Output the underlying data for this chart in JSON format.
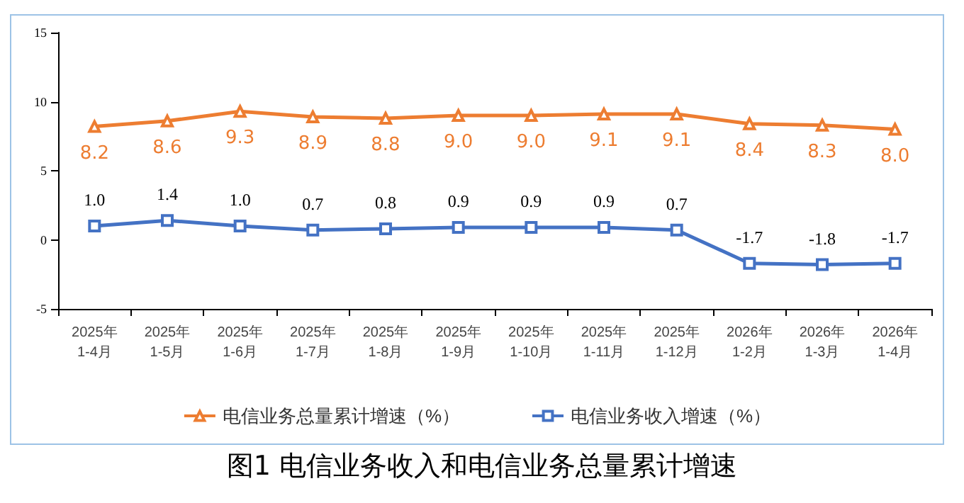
{
  "chart_data": {
    "type": "line",
    "title": "图1 电信业务收入和电信业务总量累计增速",
    "categories": [
      "2025年\n1-4月",
      "2025年\n1-5月",
      "2025年\n1-6月",
      "2025年\n1-7月",
      "2025年\n1-8月",
      "2025年\n1-9月",
      "2025年\n1-10月",
      "2025年\n1-11月",
      "2025年\n1-12月",
      "2026年\n1-2月",
      "2026年\n1-3月",
      "2026年\n1-4月"
    ],
    "series": [
      {
        "name": "电信业务总量累计增速（%）",
        "color": "#ed7d31",
        "marker": "triangle",
        "values": [
          8.2,
          8.6,
          9.3,
          8.9,
          8.8,
          9.0,
          9.0,
          9.1,
          9.1,
          8.4,
          8.3,
          8.0
        ],
        "value_labels": [
          "8.2",
          "8.6",
          "9.3",
          "8.9",
          "8.8",
          "9.0",
          "9.0",
          "9.1",
          "9.1",
          "8.4",
          "8.3",
          "8.0"
        ]
      },
      {
        "name": "电信业务收入增速（%）",
        "color": "#4472c4",
        "marker": "square",
        "values": [
          1.0,
          1.4,
          1.0,
          0.7,
          0.8,
          0.9,
          0.9,
          0.9,
          0.7,
          -1.7,
          -1.8,
          -1.7
        ],
        "value_labels": [
          "1.0",
          "1.4",
          "1.0",
          "0.7",
          "0.8",
          "0.9",
          "0.9",
          "0.9",
          "0.7",
          "-1.7",
          "-1.8",
          "-1.7"
        ]
      }
    ],
    "ylim": [
      -5,
      15
    ],
    "yticks": [
      -5,
      0,
      5,
      10,
      15
    ],
    "grid": false,
    "legend": "bottom"
  }
}
